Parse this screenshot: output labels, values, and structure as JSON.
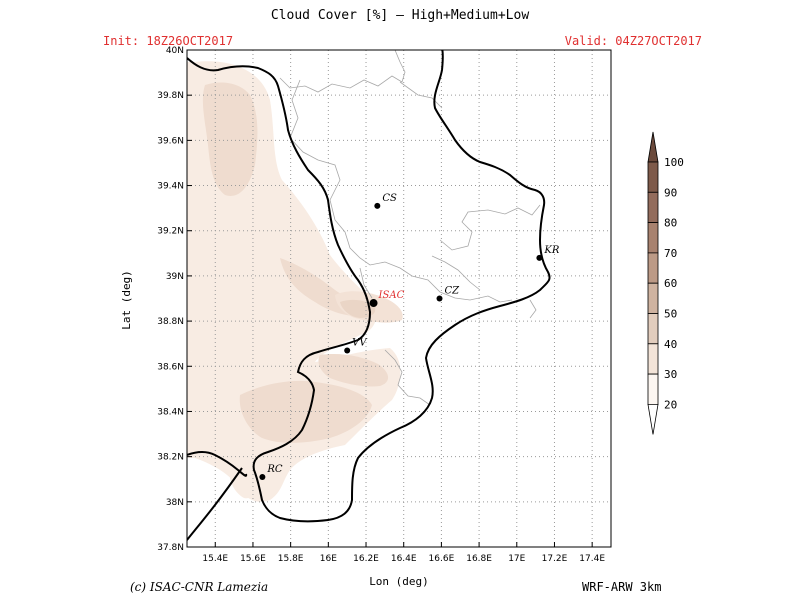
{
  "header": {
    "title": "Cloud Cover [%] — High+Medium+Low",
    "init": "Init: 18Z26OCT2017",
    "valid": "Valid: 04Z27OCT2017"
  },
  "footer": {
    "credit": "(c) ISAC-CNR Lamezia",
    "model": "WRF-ARW 3km"
  },
  "map": {
    "xlabel": "Lon (deg)",
    "ylabel": "Lat (deg)",
    "lon_ticks": [
      "15.4E",
      "15.6E",
      "15.8E",
      "16E",
      "16.2E",
      "16.4E",
      "16.6E",
      "16.8E",
      "17E",
      "17.2E",
      "17.4E"
    ],
    "lat_ticks": [
      "40N",
      "39.8N",
      "39.6N",
      "39.4N",
      "39.2N",
      "39N",
      "38.8N",
      "38.6N",
      "38.4N",
      "38.2N",
      "38N",
      "37.8N"
    ],
    "cities": [
      {
        "label": "CS",
        "lon": 16.26,
        "lat": 39.31
      },
      {
        "label": "KR",
        "lon": 17.12,
        "lat": 39.08
      },
      {
        "label": "ISAC",
        "lon": 16.24,
        "lat": 38.88,
        "highlight": true
      },
      {
        "label": "CZ",
        "lon": 16.59,
        "lat": 38.9
      },
      {
        "label": "VV",
        "lon": 16.1,
        "lat": 38.67
      },
      {
        "label": "RC",
        "lon": 15.65,
        "lat": 38.11
      }
    ],
    "colorbar": {
      "levels": [
        "100",
        "90",
        "80",
        "70",
        "60",
        "50",
        "40",
        "30",
        "20"
      ],
      "colors": [
        "#6b4a3c",
        "#7e5a4a",
        "#936c5c",
        "#a8826f",
        "#bc9a86",
        "#cfb3a0",
        "#e2cdbd",
        "#f3e4d8",
        "#fcf6f1"
      ]
    }
  }
}
